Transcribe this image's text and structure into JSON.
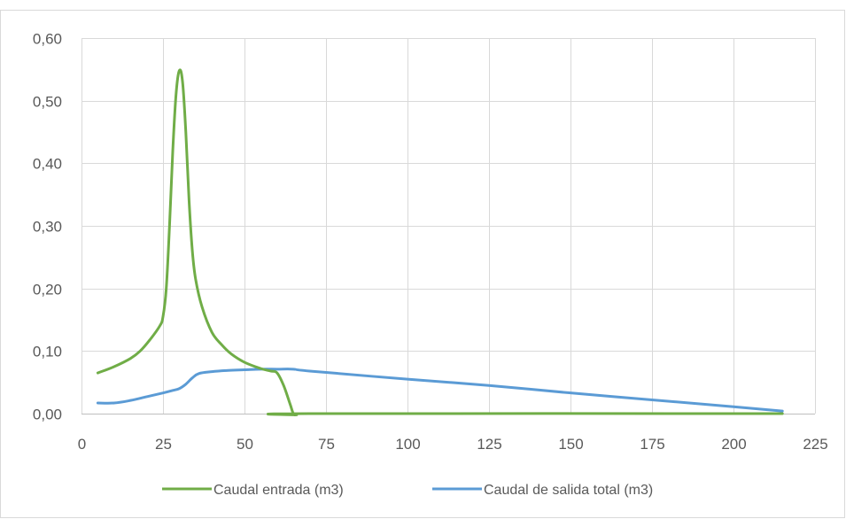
{
  "chart_data": {
    "type": "line",
    "title": "",
    "xlabel": "",
    "ylabel": "",
    "xlim": [
      0,
      225
    ],
    "ylim": [
      0,
      0.6
    ],
    "x_ticks": [
      0,
      25,
      50,
      75,
      100,
      125,
      150,
      175,
      200,
      225
    ],
    "x_tick_labels": [
      "0",
      "25",
      "50",
      "75",
      "100",
      "125",
      "150",
      "175",
      "200",
      "225"
    ],
    "y_ticks": [
      0,
      0.1,
      0.2,
      0.3,
      0.4,
      0.5,
      0.6
    ],
    "y_tick_labels": [
      "0,00",
      "0,10",
      "0,20",
      "0,30",
      "0,40",
      "0,50",
      "0,60"
    ],
    "grid": true,
    "legend_position": "bottom",
    "series": [
      {
        "name": "Caudal entrada (m3)",
        "color": "#70ad47",
        "points": [
          [
            5,
            0.065
          ],
          [
            10,
            0.075
          ],
          [
            15,
            0.088
          ],
          [
            18,
            0.1
          ],
          [
            21,
            0.118
          ],
          [
            24,
            0.14
          ],
          [
            25,
            0.155
          ],
          [
            26,
            0.2
          ],
          [
            27,
            0.3
          ],
          [
            28,
            0.42
          ],
          [
            29,
            0.51
          ],
          [
            30,
            0.548
          ],
          [
            31,
            0.53
          ],
          [
            32,
            0.45
          ],
          [
            33,
            0.34
          ],
          [
            34,
            0.26
          ],
          [
            35,
            0.215
          ],
          [
            37,
            0.17
          ],
          [
            40,
            0.13
          ],
          [
            43,
            0.11
          ],
          [
            46,
            0.095
          ],
          [
            50,
            0.082
          ],
          [
            55,
            0.072
          ],
          [
            58,
            0.068
          ],
          [
            60,
            0.065
          ],
          [
            62,
            0.045
          ],
          [
            64,
            0.015
          ],
          [
            65,
            0.0
          ],
          [
            66,
            -0.002
          ],
          [
            70,
            0.0
          ],
          [
            215,
            0.0
          ]
        ]
      },
      {
        "name": "Caudal de salida total (m3)",
        "color": "#5b9bd5",
        "points": [
          [
            5,
            0.017
          ],
          [
            10,
            0.017
          ],
          [
            15,
            0.021
          ],
          [
            20,
            0.027
          ],
          [
            25,
            0.033
          ],
          [
            28,
            0.037
          ],
          [
            30,
            0.04
          ],
          [
            32,
            0.047
          ],
          [
            34,
            0.057
          ],
          [
            36,
            0.064
          ],
          [
            40,
            0.067
          ],
          [
            45,
            0.069
          ],
          [
            50,
            0.07
          ],
          [
            55,
            0.071
          ],
          [
            60,
            0.071
          ],
          [
            65,
            0.071
          ],
          [
            70,
            0.068
          ],
          [
            100,
            0.055
          ],
          [
            125,
            0.045
          ],
          [
            150,
            0.033
          ],
          [
            175,
            0.022
          ],
          [
            200,
            0.011
          ],
          [
            215,
            0.004
          ]
        ]
      }
    ]
  }
}
